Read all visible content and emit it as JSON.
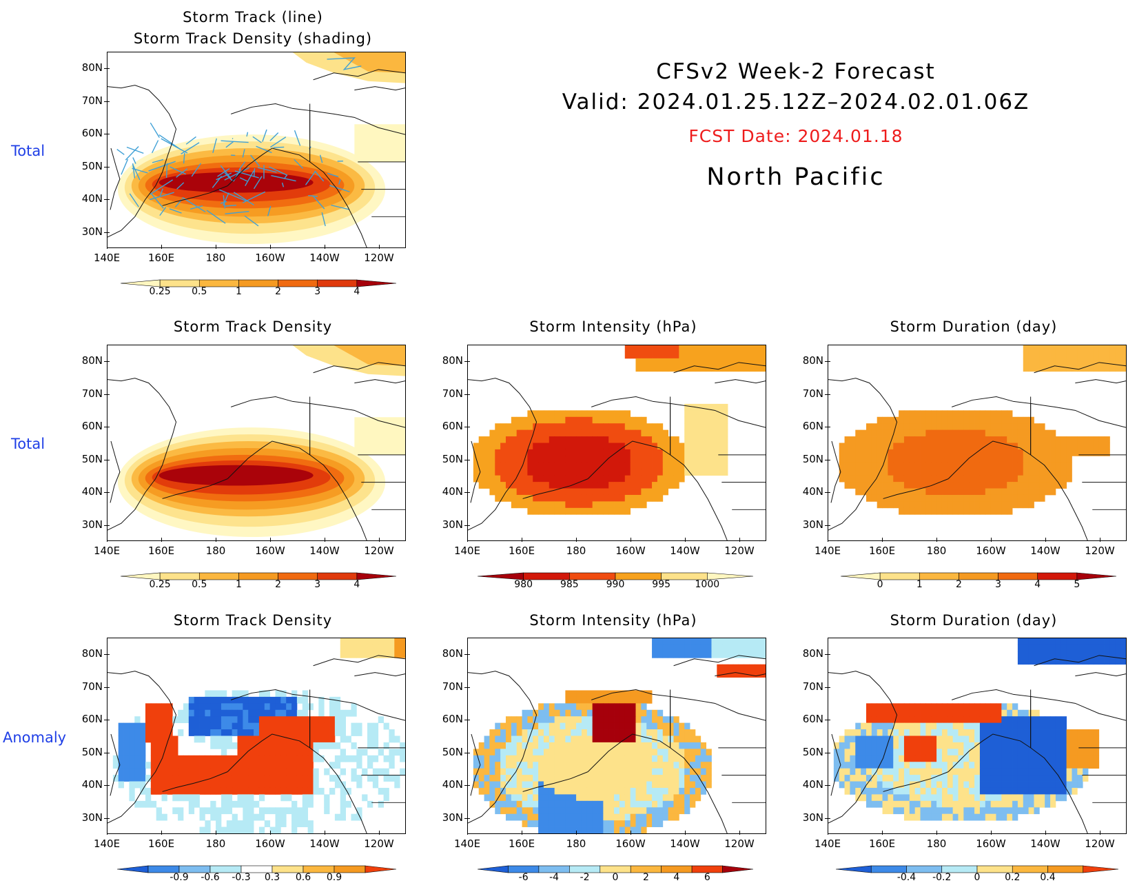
{
  "header": {
    "title": "CFSv2 Week-2 Forecast",
    "valid": "Valid: 2024.01.25.12Z–2024.02.01.06Z",
    "fcst_date": "FCST Date: 2024.01.18",
    "region": "North Pacific"
  },
  "row_labels": [
    "Total",
    "Total",
    "Anomaly"
  ],
  "axes": {
    "lat": [
      "80N",
      "70N",
      "60N",
      "50N",
      "40N",
      "30N"
    ],
    "lon": [
      "140E",
      "160E",
      "180",
      "160W",
      "140W",
      "120W"
    ]
  },
  "panels": {
    "p1": {
      "title": "Storm Track (line)\nStorm Track Density (shading)"
    },
    "p2": {
      "title": "Storm Track Density"
    },
    "p3": {
      "title": "Storm Intensity (hPa)"
    },
    "p4": {
      "title": "Storm Duration (day)"
    },
    "p5": {
      "title": "Storm Track Density"
    },
    "p6": {
      "title": "Storm Intensity (hPa)"
    },
    "p7": {
      "title": "Storm Duration (day)"
    }
  },
  "colorbars": {
    "density": {
      "labels": [
        "0.25",
        "0.5",
        "1",
        "2",
        "3",
        "4"
      ],
      "colors": [
        "#fff7c0",
        "#fde28a",
        "#fbb73f",
        "#f59a21",
        "#f06a10",
        "#e03a0c",
        "#a6000b"
      ]
    },
    "intensity": {
      "labels": [
        "980",
        "985",
        "990",
        "995",
        "1000"
      ],
      "colors": [
        "#a6000b",
        "#d2180a",
        "#f04c10",
        "#f7a21e",
        "#fde28a",
        "#fff7c0"
      ]
    },
    "duration": {
      "labels": [
        "0",
        "1",
        "2",
        "3",
        "4",
        "5"
      ],
      "colors": [
        "#fff7c0",
        "#fde28a",
        "#fbb73f",
        "#f59a21",
        "#f06a10",
        "#d2180a",
        "#a6000b"
      ]
    },
    "density_anom": {
      "labels": [
        "-0.9",
        "-0.6",
        "-0.3",
        "0.3",
        "0.6",
        "0.9"
      ],
      "colors": [
        "#1e5fd6",
        "#3d8ae8",
        "#7dbdf0",
        "#b6eaf5",
        "#ffffff",
        "#fde28a",
        "#fbb73f",
        "#f59a21",
        "#f0400c"
      ]
    },
    "intensity_anom": {
      "labels": [
        "-6",
        "-4",
        "-2",
        "0",
        "2",
        "4",
        "6"
      ],
      "colors": [
        "#1e5fd6",
        "#3d8ae8",
        "#7dbdf0",
        "#b6eaf5",
        "#fde28a",
        "#fbb73f",
        "#f59a21",
        "#f0400c",
        "#a6000b"
      ]
    },
    "duration_anom": {
      "labels": [
        "-0.4",
        "-0.2",
        "0",
        "0.2",
        "0.4"
      ],
      "colors": [
        "#1e5fd6",
        "#3d8ae8",
        "#7dbdf0",
        "#b6eaf5",
        "#fde28a",
        "#fbb73f",
        "#f59a21",
        "#f0400c"
      ]
    }
  }
}
